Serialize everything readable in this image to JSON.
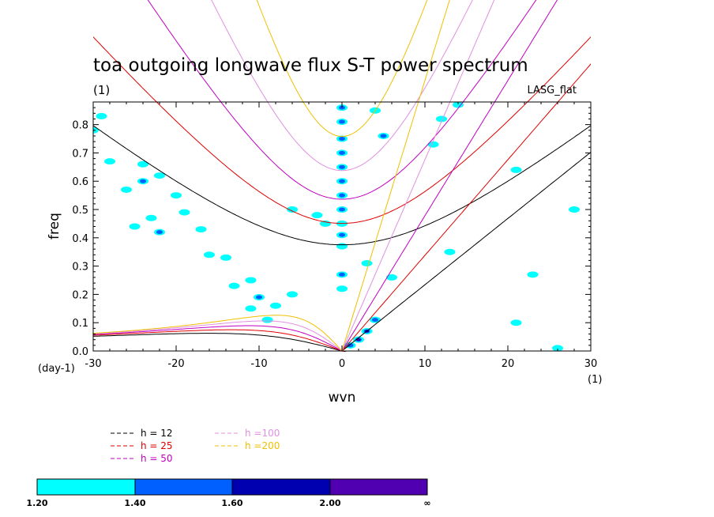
{
  "chart_data": {
    "type": "contour",
    "title": "toa outgoing longwave flux S-T power spectrum",
    "subtitle_left": "(1)",
    "subtitle_right": "LASG_flat",
    "xlabel": "wvn",
    "ylabel": "freq",
    "x_unit": "(1)",
    "y_unit": "(day-1)",
    "xlim": [
      -30,
      30
    ],
    "ylim": [
      0,
      0.88
    ],
    "x_ticks": [
      -30,
      -20,
      -10,
      0,
      10,
      20,
      30
    ],
    "x_tick_labels": [
      "-30",
      "-20",
      "-10",
      "0",
      "10",
      "20",
      "30"
    ],
    "y_ticks": [
      0,
      0.1,
      0.2,
      0.3,
      0.4,
      0.5,
      0.6,
      0.7,
      0.8
    ],
    "y_tick_labels": [
      "0.0",
      "0.1",
      "0.2",
      "0.3",
      "0.4",
      "0.5",
      "0.6",
      "0.7",
      "0.8"
    ],
    "dispersion_curves": [
      {
        "label": "h = 12",
        "h": 12,
        "color": "#000000"
      },
      {
        "label": "h = 25",
        "h": 25,
        "color": "#e00000"
      },
      {
        "label": "h = 50",
        "h": 50,
        "color": "#c000c0"
      },
      {
        "label": "h =100",
        "h": 100,
        "color": "#e090e0"
      },
      {
        "label": "h =200",
        "h": 200,
        "color": "#f0c000"
      }
    ],
    "colorbar": {
      "labels": [
        "1.20",
        "1.40",
        "1.60",
        "2.00",
        "∞"
      ],
      "colors": [
        "#00ffff",
        "#0060ff",
        "#0000b0",
        "#5000b0"
      ]
    },
    "power_blobs": [
      {
        "x": 0,
        "y": 0.86,
        "level": 1
      },
      {
        "x": 0,
        "y": 0.81,
        "level": 1
      },
      {
        "x": 0,
        "y": 0.75,
        "level": 1
      },
      {
        "x": 0,
        "y": 0.7,
        "level": 1
      },
      {
        "x": 0,
        "y": 0.65,
        "level": 1
      },
      {
        "x": 0,
        "y": 0.6,
        "level": 1
      },
      {
        "x": 0,
        "y": 0.55,
        "level": 1
      },
      {
        "x": 0,
        "y": 0.5,
        "level": 1
      },
      {
        "x": 0,
        "y": 0.45,
        "level": 0
      },
      {
        "x": 0,
        "y": 0.41,
        "level": 1
      },
      {
        "x": 0,
        "y": 0.37,
        "level": 0
      },
      {
        "x": 0,
        "y": 0.27,
        "level": 1
      },
      {
        "x": 0,
        "y": 0.22,
        "level": 0
      },
      {
        "x": 2,
        "y": 0.04,
        "level": 3
      },
      {
        "x": 3,
        "y": 0.07,
        "level": 2
      },
      {
        "x": 4,
        "y": 0.11,
        "level": 1
      },
      {
        "x": 1,
        "y": 0.02,
        "level": 1
      },
      {
        "x": -26,
        "y": 0.57,
        "level": 0
      },
      {
        "x": -24,
        "y": 0.6,
        "level": 1
      },
      {
        "x": -22,
        "y": 0.62,
        "level": 0
      },
      {
        "x": -20,
        "y": 0.55,
        "level": 0
      },
      {
        "x": -17,
        "y": 0.43,
        "level": 0
      },
      {
        "x": -22,
        "y": 0.42,
        "level": 1
      },
      {
        "x": -25,
        "y": 0.44,
        "level": 0
      },
      {
        "x": -16,
        "y": 0.34,
        "level": 0
      },
      {
        "x": -14,
        "y": 0.33,
        "level": 0
      },
      {
        "x": -11,
        "y": 0.25,
        "level": 0
      },
      {
        "x": -13,
        "y": 0.23,
        "level": 0
      },
      {
        "x": -10,
        "y": 0.19,
        "level": 1
      },
      {
        "x": -8,
        "y": 0.16,
        "level": 0
      },
      {
        "x": -11,
        "y": 0.15,
        "level": 0
      },
      {
        "x": -6,
        "y": 0.2,
        "level": 0
      },
      {
        "x": -9,
        "y": 0.11,
        "level": 0
      },
      {
        "x": -2,
        "y": 0.45,
        "level": 0
      },
      {
        "x": 5,
        "y": 0.76,
        "level": 1
      },
      {
        "x": 11,
        "y": 0.73,
        "level": 0
      },
      {
        "x": 12,
        "y": 0.82,
        "level": 0
      },
      {
        "x": 14,
        "y": 0.87,
        "level": 0
      },
      {
        "x": 6,
        "y": 0.26,
        "level": 0
      },
      {
        "x": 3,
        "y": 0.31,
        "level": 0
      },
      {
        "x": 21,
        "y": 0.64,
        "level": 0
      },
      {
        "x": -30,
        "y": 0.78,
        "level": 0
      },
      {
        "x": -29,
        "y": 0.83,
        "level": 0
      },
      {
        "x": -28,
        "y": 0.67,
        "level": 0
      },
      {
        "x": -24,
        "y": 0.66,
        "level": 0
      },
      {
        "x": -19,
        "y": 0.49,
        "level": 0
      },
      {
        "x": -23,
        "y": 0.47,
        "level": 0
      },
      {
        "x": -3,
        "y": 0.48,
        "level": 0
      },
      {
        "x": -6,
        "y": 0.5,
        "level": 0
      },
      {
        "x": 4,
        "y": 0.85,
        "level": 0
      },
      {
        "x": 21,
        "y": 0.1,
        "level": 0
      },
      {
        "x": 26,
        "y": 0.01,
        "level": 0
      },
      {
        "x": 23,
        "y": 0.27,
        "level": 0
      },
      {
        "x": 28,
        "y": 0.5,
        "level": 0
      },
      {
        "x": 13,
        "y": 0.35,
        "level": 0
      }
    ]
  }
}
